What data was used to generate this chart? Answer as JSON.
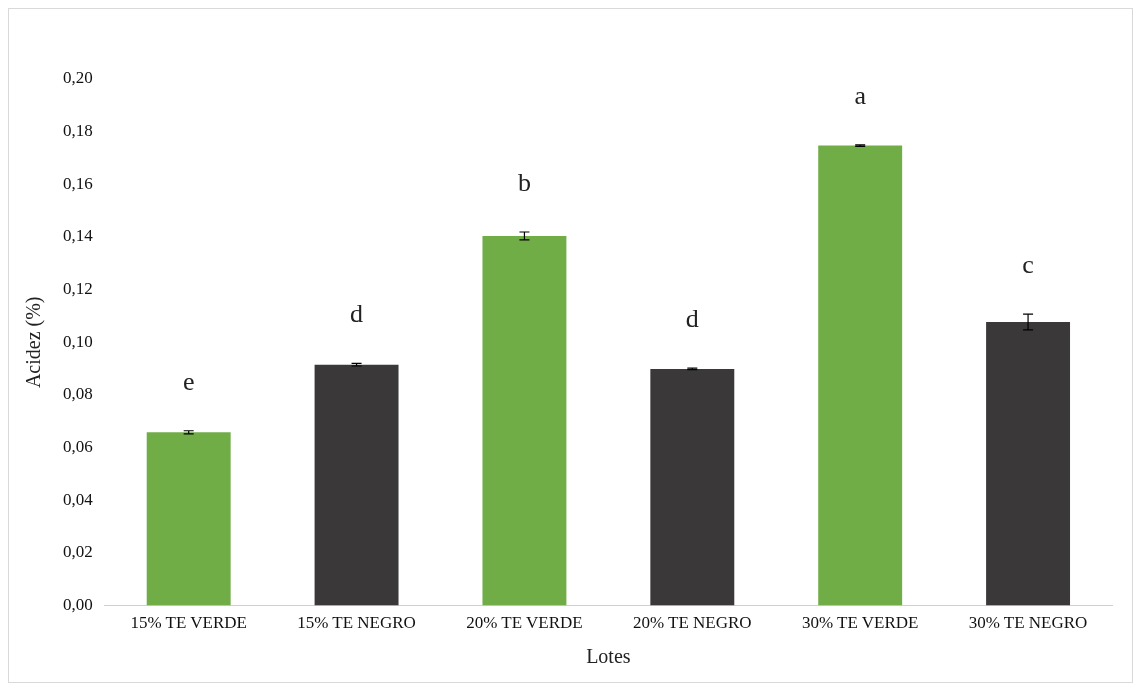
{
  "chart_data": {
    "type": "bar",
    "xlabel": "Lotes",
    "ylabel": "Acidez (%)",
    "categories": [
      "15% TE VERDE",
      "15% TE NEGRO",
      "20% TE VERDE",
      "20% TE NEGRO",
      "30% TE VERDE",
      "30% TE NEGRO"
    ],
    "values": [
      0.0658,
      0.0915,
      0.1404,
      0.0899,
      0.1747,
      0.1077
    ],
    "errors": [
      0.0006,
      0.0005,
      0.0015,
      0.0003,
      0.0003,
      0.003
    ],
    "colors": [
      "#70ad47",
      "#3a3838",
      "#70ad47",
      "#3a3838",
      "#70ad47",
      "#3a3838"
    ],
    "ylim": [
      0,
      0.2
    ],
    "yticks": [
      {
        "value": 0,
        "label": "0,00"
      },
      {
        "value": 0.02,
        "label": "0,02"
      },
      {
        "value": 0.04,
        "label": "0,04"
      },
      {
        "value": 0.06,
        "label": "0,06"
      },
      {
        "value": 0.08,
        "label": "0,08"
      },
      {
        "value": 0.1,
        "label": "0,10"
      },
      {
        "value": 0.12,
        "label": "0,12"
      },
      {
        "value": 0.14,
        "label": "0,14"
      },
      {
        "value": 0.16,
        "label": "0,16"
      },
      {
        "value": 0.18,
        "label": "0,18"
      },
      {
        "value": 0.2,
        "label": "0,20"
      }
    ],
    "annotations": [
      "e",
      "d",
      "b",
      "d",
      "a",
      "c"
    ],
    "grid": false,
    "legend": false
  }
}
